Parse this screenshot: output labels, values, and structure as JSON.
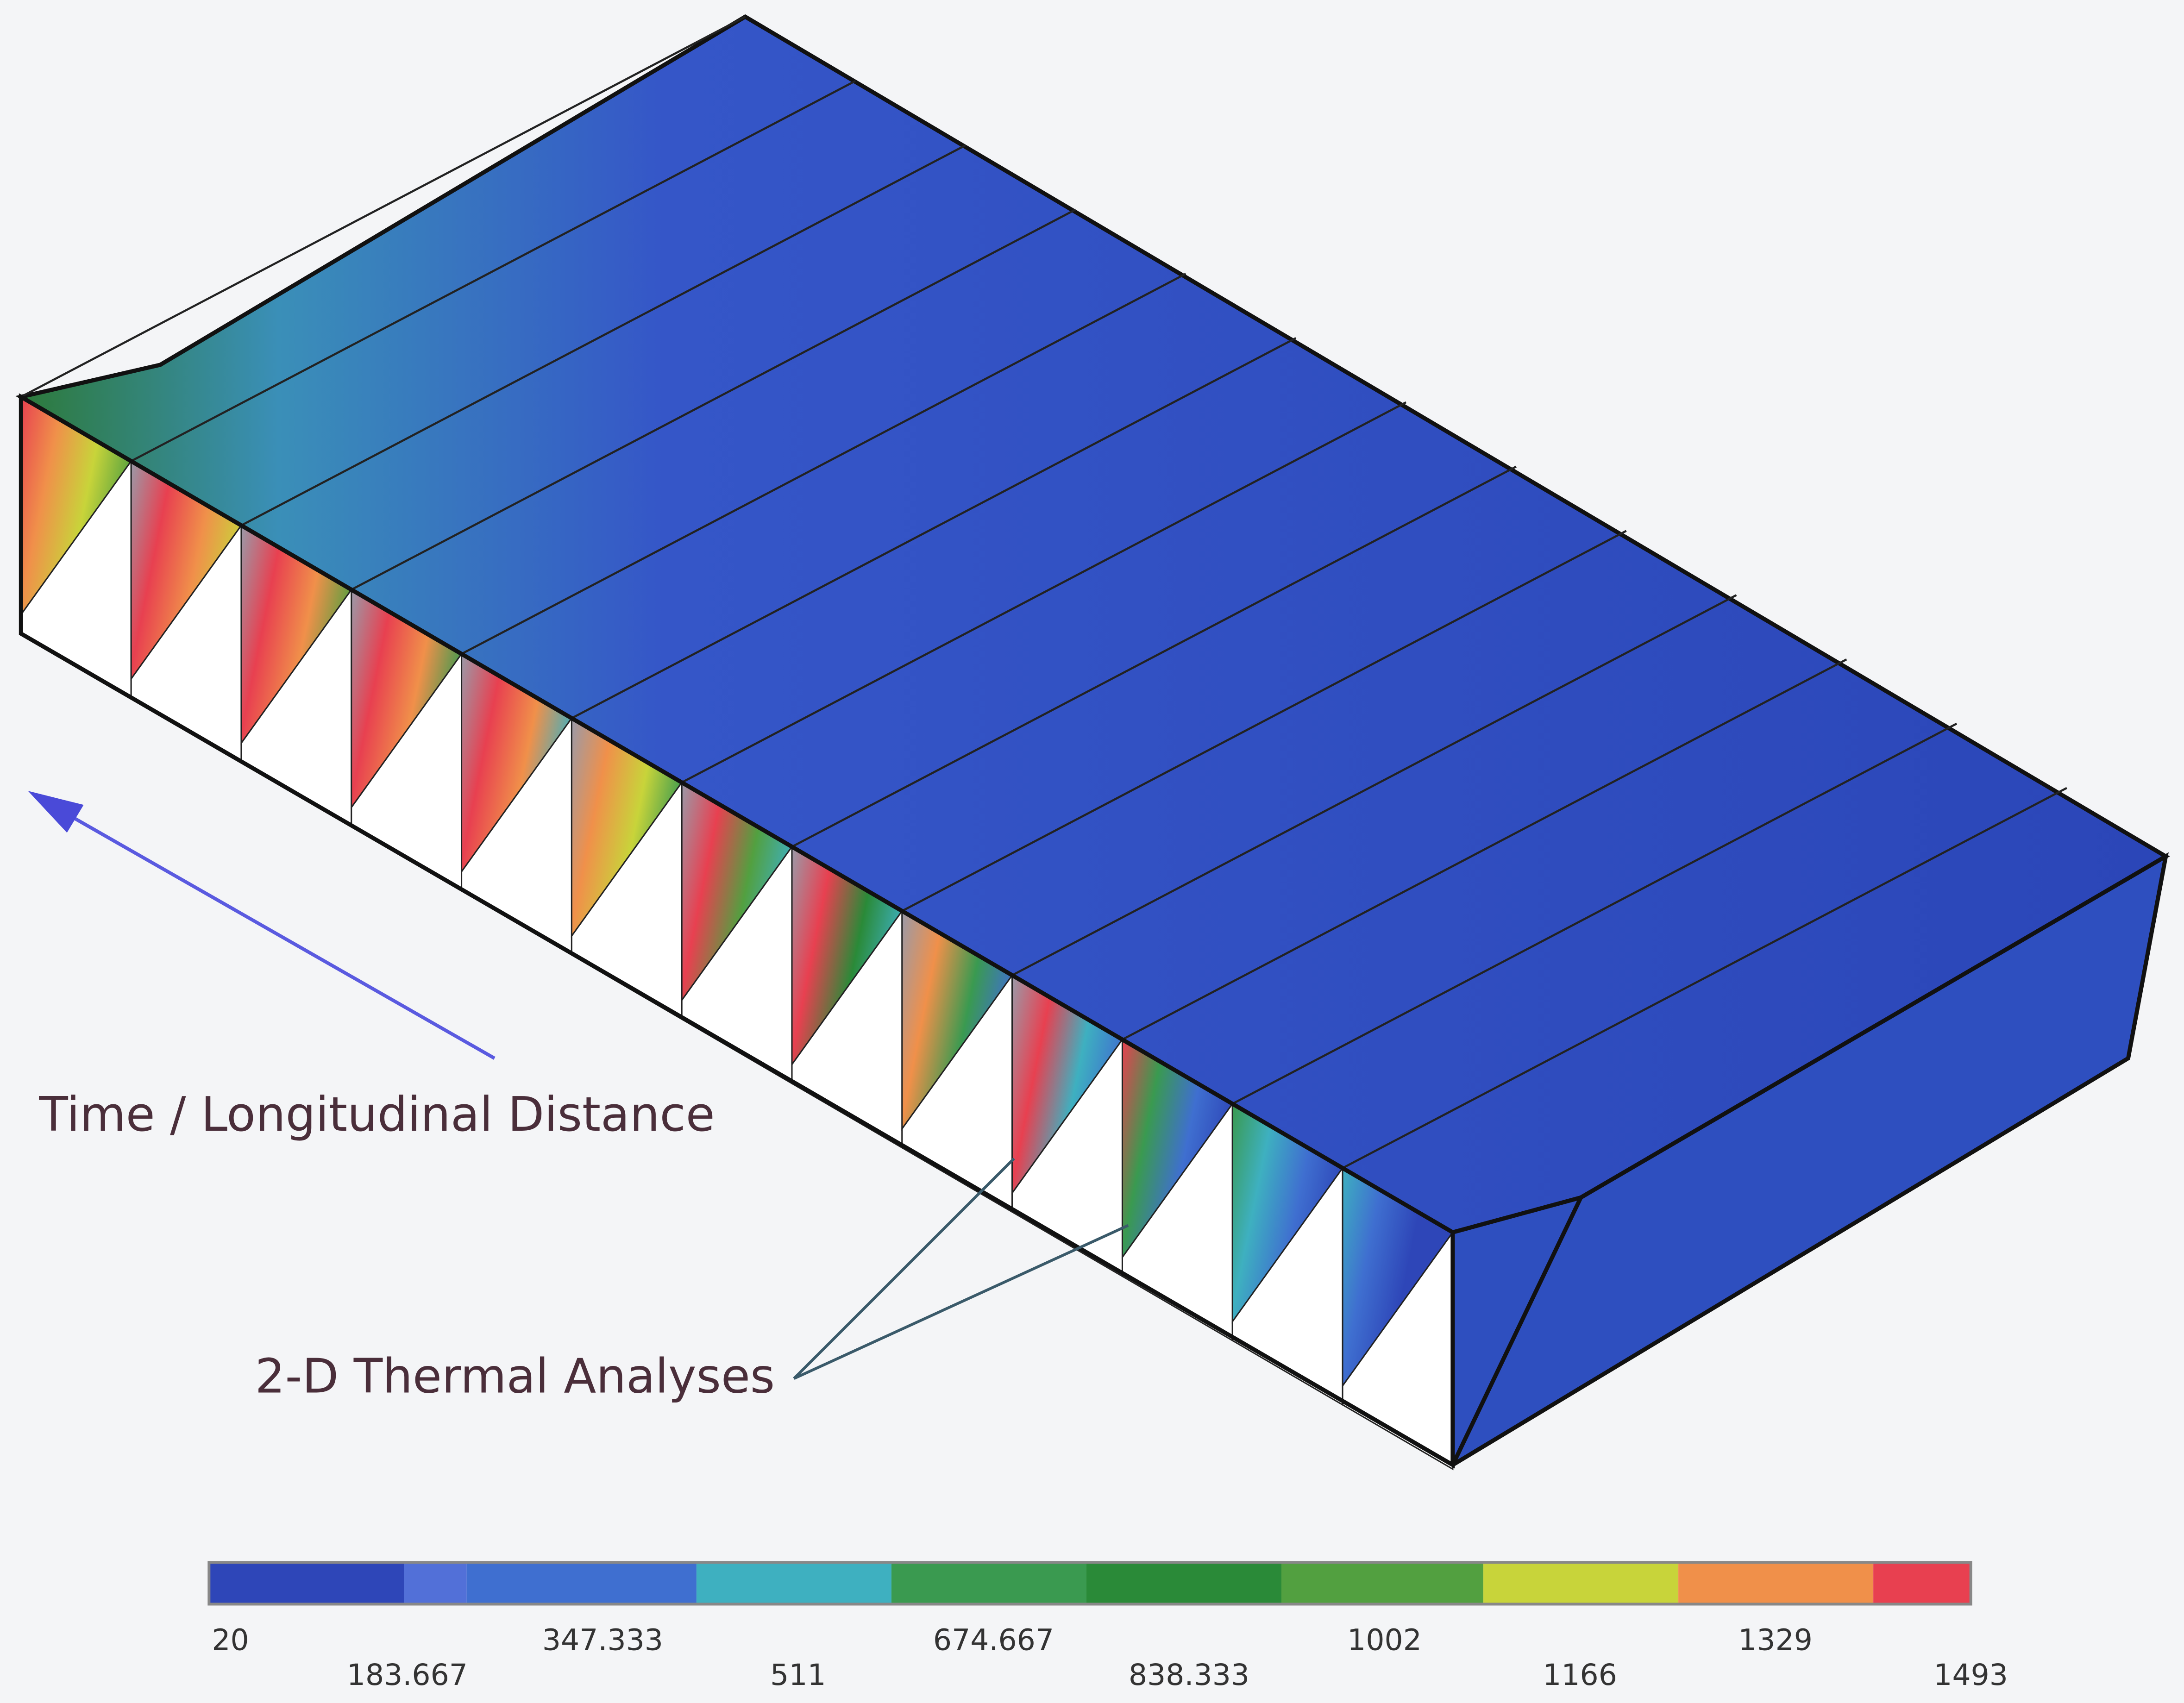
{
  "labels": {
    "direction": "Time / Longitudinal Distance",
    "sections": "2-D Thermal Analyses"
  },
  "colorbar": {
    "labels": [
      "20",
      "183.667",
      "347.333",
      "511",
      "674.667",
      "838.333",
      "1002",
      "1166",
      "1329",
      "1493"
    ]
  }
}
